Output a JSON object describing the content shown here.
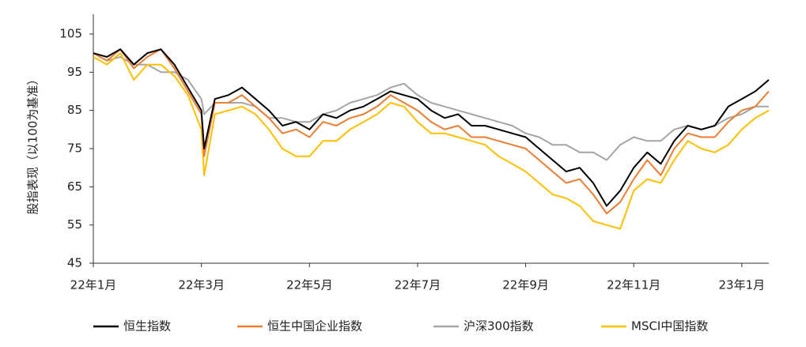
{
  "chart_data": {
    "type": "line",
    "y_label": "股指表现（以100为基准）",
    "x": [
      0,
      0.25,
      0.5,
      0.75,
      1,
      1.25,
      1.5,
      1.75,
      2,
      2.05,
      2.25,
      2.5,
      2.75,
      3,
      3.25,
      3.5,
      3.75,
      4,
      4.25,
      4.5,
      4.75,
      5,
      5.25,
      5.5,
      5.75,
      6,
      6.25,
      6.5,
      6.75,
      7,
      7.25,
      7.5,
      7.75,
      8,
      8.25,
      8.5,
      8.75,
      9,
      9.25,
      9.5,
      9.75,
      10,
      10.25,
      10.5,
      10.75,
      11,
      11.25,
      11.5,
      11.75,
      12,
      12.25,
      12.5
    ],
    "xlim": [
      0,
      12.5
    ],
    "xticks": [
      {
        "value": 0,
        "label": "22年1月"
      },
      {
        "value": 2,
        "label": "22年3月"
      },
      {
        "value": 4,
        "label": "22年5月"
      },
      {
        "value": 6,
        "label": "22年7月"
      },
      {
        "value": 8,
        "label": "22年9月"
      },
      {
        "value": 10,
        "label": "22年11月"
      },
      {
        "value": 12,
        "label": "23年1月"
      }
    ],
    "ylim": [
      45,
      105
    ],
    "yticks": [
      45,
      55,
      65,
      75,
      85,
      95,
      105
    ],
    "grid": false,
    "legend": "bottom",
    "series": [
      {
        "name": "恒生指数",
        "color": "#000000",
        "values": [
          100,
          99,
          101,
          97,
          100,
          101,
          97,
          91,
          85,
          75,
          88,
          89,
          91,
          88,
          85,
          81,
          82,
          80,
          84,
          83,
          85,
          86,
          88,
          90,
          89,
          88,
          85,
          83,
          84,
          81,
          81,
          80,
          79,
          78,
          75,
          72,
          69,
          70,
          66,
          60,
          64,
          70,
          74,
          71,
          77,
          81,
          80,
          81,
          86,
          88,
          90,
          93
        ]
      },
      {
        "name": "恒生中国企业指数",
        "color": "#ed7d31",
        "values": [
          100,
          98,
          101,
          96,
          99,
          101,
          96,
          90,
          84,
          73,
          87,
          87,
          89,
          86,
          83,
          79,
          80,
          78,
          82,
          81,
          83,
          84,
          86,
          89,
          87,
          85,
          82,
          80,
          81,
          78,
          78,
          77,
          76,
          75,
          72,
          69,
          66,
          67,
          63,
          58,
          61,
          67,
          72,
          68,
          75,
          79,
          78,
          78,
          82,
          85,
          86,
          90
        ]
      },
      {
        "name": "沪深300指数",
        "color": "#a5a5a5",
        "values": [
          100,
          98,
          99,
          97,
          97,
          95,
          95,
          93,
          88,
          84,
          87,
          87,
          87,
          86,
          83,
          83,
          82,
          82,
          84,
          85,
          87,
          88,
          89,
          91,
          92,
          89,
          87,
          86,
          85,
          84,
          83,
          82,
          81,
          79,
          78,
          76,
          76,
          74,
          74,
          72,
          76,
          78,
          77,
          77,
          80,
          81,
          80,
          81,
          83,
          84,
          86,
          86
        ]
      },
      {
        "name": "MSCI中国指数",
        "color": "#ffc000",
        "values": [
          99,
          97,
          100,
          93,
          97,
          97,
          94,
          89,
          80,
          68,
          84,
          85,
          86,
          84,
          80,
          75,
          73,
          73,
          77,
          77,
          80,
          82,
          84,
          87,
          86,
          82,
          79,
          79,
          78,
          77,
          76,
          73,
          71,
          69,
          66,
          63,
          62,
          60,
          56,
          55,
          54,
          64,
          67,
          66,
          72,
          77,
          75,
          74,
          76,
          80,
          83,
          85
        ]
      }
    ]
  }
}
